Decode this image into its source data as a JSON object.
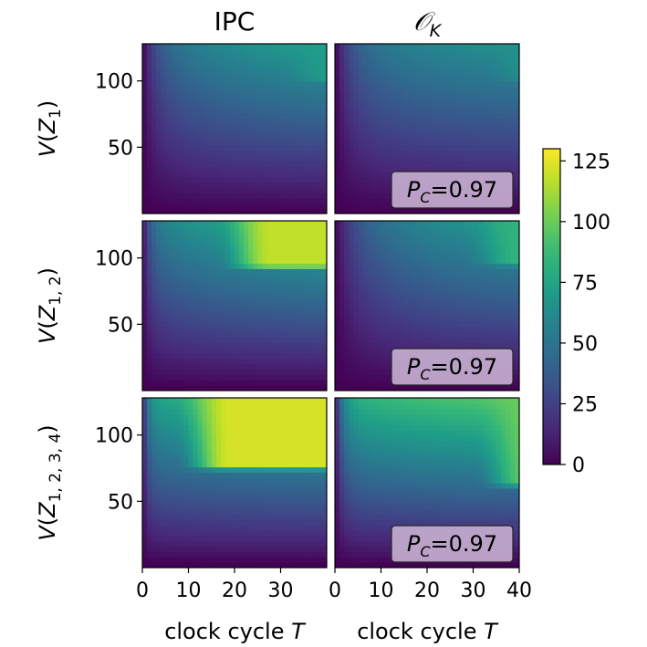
{
  "chart_data": {
    "type": "heatmap",
    "columns": [
      {
        "title": "IPC",
        "title_style": "plain"
      },
      {
        "title": "𝒪",
        "title_sub": "K",
        "title_style": "math"
      }
    ],
    "rows": [
      {
        "ylabel": "V(Z",
        "ylabel_sub": "1",
        "ylabel_tail": ")"
      },
      {
        "ylabel": "V(Z",
        "ylabel_sub": "1, 2",
        "ylabel_tail": ")"
      },
      {
        "ylabel": "V(Z",
        "ylabel_sub": "1, 2, 3, 4",
        "ylabel_tail": ")"
      }
    ],
    "xlabel": "clock cycle ",
    "xlabel_var": "T",
    "x_range": [
      0,
      40
    ],
    "y_range": [
      0,
      128
    ],
    "left_x_ticks": [
      "0",
      "10",
      "20",
      "30"
    ],
    "right_x_ticks": [
      "0",
      "10",
      "20",
      "30",
      "40"
    ],
    "y_ticks": [
      "50",
      "100"
    ],
    "annotation": {
      "prefix": "P",
      "sub": "C",
      "value": "=0.97"
    },
    "colorbar": {
      "min": 0,
      "max": 130,
      "ticks": [
        "0",
        "25",
        "50",
        "75",
        "100",
        "125"
      ],
      "colormap": "viridis"
    },
    "panels": [
      {
        "row": 0,
        "col": 0,
        "annotated": false,
        "max_at_top": 78,
        "saturation": 0.5,
        "onset_T": 2.5,
        "hi_boundary": 100,
        "hi_level": 72,
        "hi_start_T": 36,
        "y_low": 8
      },
      {
        "row": 0,
        "col": 1,
        "annotated": true,
        "max_at_top": 70,
        "saturation": 0.4,
        "onset_T": 3,
        "hi_boundary": 100,
        "hi_level": 66,
        "hi_start_T": 38,
        "y_low": 5
      },
      {
        "row": 1,
        "col": 0,
        "annotated": false,
        "max_at_top": 88,
        "saturation": 0.4,
        "onset_T": 1.5,
        "hi_boundary": 93,
        "hi_level": 118,
        "hi_start_T": 22,
        "y_low": 10
      },
      {
        "row": 1,
        "col": 1,
        "annotated": true,
        "max_at_top": 78,
        "saturation": 0.6,
        "onset_T": 3,
        "hi_boundary": 95,
        "hi_level": 84,
        "hi_start_T": 34,
        "y_low": 8
      },
      {
        "row": 2,
        "col": 0,
        "annotated": false,
        "max_at_top": 92,
        "saturation": 0.2,
        "onset_T": 1,
        "hi_boundary": 75,
        "hi_level": 122,
        "hi_start_T": 13,
        "y_low": 12
      },
      {
        "row": 2,
        "col": 1,
        "annotated": true,
        "max_at_top": 98,
        "saturation": 0.2,
        "onset_T": 1.5,
        "hi_boundary": 62,
        "hi_level": 100,
        "hi_start_T": 36,
        "y_low": 8
      }
    ]
  }
}
